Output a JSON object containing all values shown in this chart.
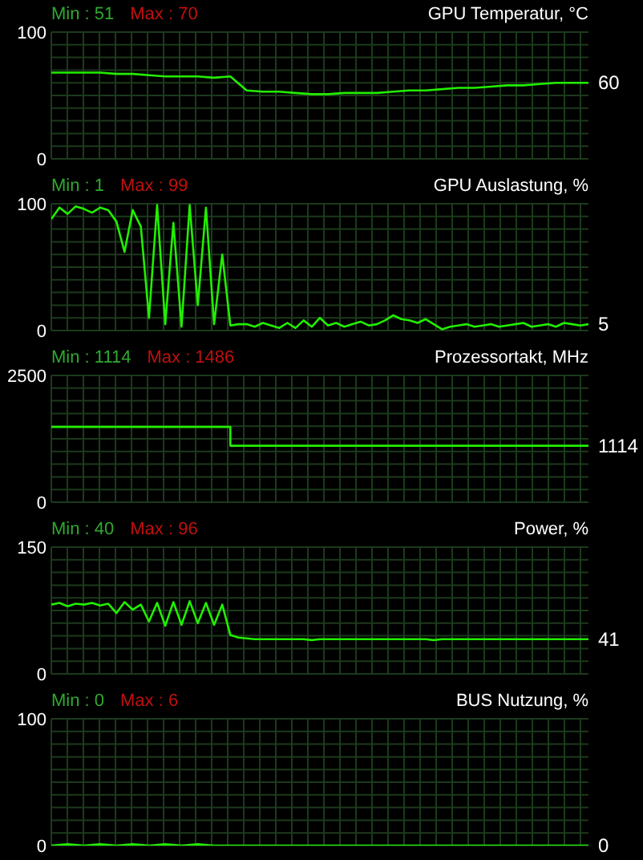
{
  "chart_data": [
    {
      "type": "line",
      "title": "GPU Temperatur, °C",
      "annotations": [
        "Min : 51",
        "Max : 70"
      ],
      "color": "#22ee00",
      "marker": "none",
      "grid": true,
      "tick_labels": "y",
      "ylim": [
        0,
        100
      ],
      "yticks": [
        0,
        {
          "value": 10,
          "label": null
        },
        {
          "value": 20,
          "label": null
        },
        {
          "value": 30,
          "label": null
        },
        {
          "value": 40,
          "label": null
        },
        {
          "value": 50,
          "label": null
        },
        {
          "value": 60,
          "label": null
        },
        {
          "value": 70,
          "label": null
        },
        {
          "value": 80,
          "label": null
        },
        {
          "value": 90,
          "label": null
        },
        100
      ],
      "categories": [
        null,
        null,
        null,
        null,
        null,
        null,
        null,
        null,
        null,
        null,
        null,
        null,
        null,
        null,
        null,
        null,
        null,
        null,
        null,
        null,
        null,
        null,
        null,
        null,
        null,
        null,
        null,
        null,
        null,
        null,
        null,
        null,
        null,
        null
      ],
      "values": [
        68,
        68,
        68,
        68,
        67,
        67,
        66,
        65,
        65,
        65,
        64,
        65,
        54,
        53,
        53,
        52,
        51,
        51,
        52,
        52,
        52,
        53,
        54,
        54,
        55,
        56,
        56,
        57,
        58,
        58,
        59,
        60,
        60,
        60
      ],
      "value_labels": [
        null,
        null,
        null,
        null,
        null,
        null,
        null,
        null,
        null,
        null,
        null,
        null,
        null,
        null,
        null,
        null,
        null,
        null,
        null,
        null,
        null,
        null,
        null,
        null,
        null,
        null,
        null,
        null,
        null,
        null,
        null,
        null,
        null,
        "60"
      ]
    },
    {
      "type": "line",
      "title": "GPU Auslastung, %",
      "annotations": [
        "Min : 1",
        "Max : 99"
      ],
      "color": "#22ee00",
      "marker": "none",
      "grid": true,
      "tick_labels": "y",
      "ylim": [
        0,
        100
      ],
      "yticks": [
        0,
        {
          "value": 10,
          "label": null
        },
        {
          "value": 20,
          "label": null
        },
        {
          "value": 30,
          "label": null
        },
        {
          "value": 40,
          "label": null
        },
        {
          "value": 50,
          "label": null
        },
        {
          "value": 60,
          "label": null
        },
        {
          "value": 70,
          "label": null
        },
        {
          "value": 80,
          "label": null
        },
        {
          "value": 90,
          "label": null
        },
        100
      ],
      "categories": [
        null,
        null,
        null,
        null,
        null,
        null,
        null,
        null,
        null,
        null,
        null,
        null,
        null,
        null,
        null,
        null,
        null,
        null,
        null,
        null,
        null,
        null,
        null,
        null,
        null,
        null,
        null,
        null,
        null,
        null,
        null,
        null,
        null,
        null,
        null,
        null,
        null,
        null,
        null,
        null,
        null,
        null,
        null,
        null,
        null,
        null,
        null,
        null,
        null,
        null,
        null,
        null,
        null,
        null,
        null,
        null,
        null,
        null,
        null,
        null,
        null,
        null,
        null,
        null,
        null,
        null,
        null
      ],
      "values": [
        88,
        97,
        92,
        98,
        96,
        93,
        97,
        95,
        86,
        62,
        95,
        82,
        10,
        99,
        5,
        85,
        3,
        99,
        20,
        97,
        5,
        60,
        4,
        5,
        5,
        3,
        6,
        4,
        2,
        6,
        2,
        8,
        3,
        10,
        4,
        6,
        3,
        5,
        7,
        4,
        5,
        8,
        12,
        9,
        8,
        6,
        9,
        5,
        1,
        3,
        4,
        5,
        3,
        4,
        5,
        3,
        4,
        5,
        6,
        3,
        4,
        5,
        3,
        6,
        5,
        4,
        5
      ],
      "value_labels": [
        null,
        null,
        null,
        null,
        null,
        null,
        null,
        null,
        null,
        null,
        null,
        null,
        null,
        null,
        null,
        null,
        null,
        null,
        null,
        null,
        null,
        null,
        null,
        null,
        null,
        null,
        null,
        null,
        null,
        null,
        null,
        null,
        null,
        null,
        null,
        null,
        null,
        null,
        null,
        null,
        null,
        null,
        null,
        null,
        null,
        null,
        null,
        null,
        null,
        null,
        null,
        null,
        null,
        null,
        null,
        null,
        null,
        null,
        null,
        null,
        null,
        null,
        null,
        null,
        null,
        null,
        "5"
      ]
    },
    {
      "type": "step",
      "title": "Prozessortakt, MHz",
      "annotations": [
        "Min : 1114",
        "Max : 1486"
      ],
      "color": "#22ee00",
      "marker": "none",
      "grid": true,
      "tick_labels": "y",
      "ylim": [
        0,
        2500
      ],
      "yticks": [
        0,
        {
          "value": 250,
          "label": null
        },
        {
          "value": 500,
          "label": null
        },
        {
          "value": 750,
          "label": null
        },
        {
          "value": 1000,
          "label": null
        },
        {
          "value": 1250,
          "label": null
        },
        {
          "value": 1500,
          "label": null
        },
        {
          "value": 1750,
          "label": null
        },
        {
          "value": 2000,
          "label": null
        },
        {
          "value": 2250,
          "label": null
        },
        2500
      ],
      "categories": [
        null,
        null,
        null,
        null
      ],
      "values": [
        1486,
        1114,
        1114,
        1114
      ],
      "value_labels": [
        null,
        null,
        null,
        "1114"
      ]
    },
    {
      "type": "line",
      "title": "Power, %",
      "annotations": [
        "Min : 40",
        "Max : 96"
      ],
      "color": "#22ee00",
      "marker": "none",
      "grid": true,
      "tick_labels": "y",
      "ylim": [
        0,
        150
      ],
      "yticks": [
        0,
        {
          "value": 15,
          "label": null
        },
        {
          "value": 30,
          "label": null
        },
        {
          "value": 45,
          "label": null
        },
        {
          "value": 60,
          "label": null
        },
        {
          "value": 75,
          "label": null
        },
        {
          "value": 90,
          "label": null
        },
        {
          "value": 105,
          "label": null
        },
        {
          "value": 120,
          "label": null
        },
        {
          "value": 135,
          "label": null
        },
        150
      ],
      "categories": [
        null,
        null,
        null,
        null,
        null,
        null,
        null,
        null,
        null,
        null,
        null,
        null,
        null,
        null,
        null,
        null,
        null,
        null,
        null,
        null,
        null,
        null,
        null,
        null,
        null,
        null,
        null,
        null,
        null,
        null,
        null,
        null,
        null,
        null,
        null,
        null,
        null,
        null,
        null,
        null,
        null,
        null,
        null,
        null,
        null,
        null,
        null,
        null,
        null,
        null,
        null,
        null,
        null,
        null,
        null,
        null,
        null,
        null,
        null,
        null,
        null,
        null,
        null,
        null,
        null,
        null,
        null
      ],
      "values": [
        82,
        84,
        80,
        83,
        82,
        84,
        81,
        83,
        72,
        85,
        76,
        82,
        62,
        84,
        57,
        85,
        58,
        86,
        60,
        84,
        58,
        82,
        46,
        43,
        42,
        41,
        41,
        41,
        41,
        41,
        41,
        41,
        40,
        41,
        41,
        41,
        41,
        41,
        41,
        41,
        41,
        41,
        41,
        41,
        41,
        41,
        41,
        40,
        41,
        41,
        41,
        41,
        41,
        41,
        41,
        41,
        41,
        41,
        41,
        41,
        41,
        41,
        41,
        41,
        41,
        41,
        41
      ],
      "value_labels": [
        null,
        null,
        null,
        null,
        null,
        null,
        null,
        null,
        null,
        null,
        null,
        null,
        null,
        null,
        null,
        null,
        null,
        null,
        null,
        null,
        null,
        null,
        null,
        null,
        null,
        null,
        null,
        null,
        null,
        null,
        null,
        null,
        null,
        null,
        null,
        null,
        null,
        null,
        null,
        null,
        null,
        null,
        null,
        null,
        null,
        null,
        null,
        null,
        null,
        null,
        null,
        null,
        null,
        null,
        null,
        null,
        null,
        null,
        null,
        null,
        null,
        null,
        null,
        null,
        null,
        null,
        "41"
      ]
    },
    {
      "type": "line",
      "title": "BUS Nutzung, %",
      "annotations": [
        "Min : 0",
        "Max : 6"
      ],
      "color": "#22ee00",
      "marker": "none",
      "grid": true,
      "tick_labels": "y",
      "ylim": [
        0,
        100
      ],
      "yticks": [
        0,
        {
          "value": 10,
          "label": null
        },
        {
          "value": 20,
          "label": null
        },
        {
          "value": 30,
          "label": null
        },
        {
          "value": 40,
          "label": null
        },
        {
          "value": 50,
          "label": null
        },
        {
          "value": 60,
          "label": null
        },
        {
          "value": 70,
          "label": null
        },
        {
          "value": 80,
          "label": null
        },
        {
          "value": 90,
          "label": null
        },
        100
      ],
      "categories": [
        null,
        null,
        null,
        null,
        null,
        null,
        null,
        null,
        null,
        null,
        null,
        null,
        null,
        null,
        null,
        null,
        null,
        null,
        null,
        null,
        null,
        null,
        null,
        null,
        null,
        null,
        null,
        null,
        null,
        null,
        null,
        null,
        null,
        null
      ],
      "values": [
        0,
        1,
        0,
        1,
        0,
        1,
        0,
        1,
        0,
        1,
        0,
        0,
        0,
        0,
        0,
        0,
        0,
        0,
        0,
        0,
        0,
        0,
        0,
        0,
        0,
        0,
        0,
        0,
        0,
        0,
        0,
        0,
        0,
        0
      ],
      "value_labels": [
        null,
        null,
        null,
        null,
        null,
        null,
        null,
        null,
        null,
        null,
        null,
        null,
        null,
        null,
        null,
        null,
        null,
        null,
        null,
        null,
        null,
        null,
        null,
        null,
        null,
        null,
        null,
        null,
        null,
        null,
        null,
        null,
        null,
        "0"
      ]
    }
  ]
}
